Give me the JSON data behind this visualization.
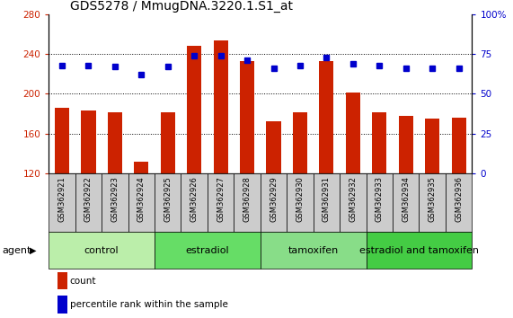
{
  "title": "GDS5278 / MmugDNA.3220.1.S1_at",
  "samples": [
    "GSM362921",
    "GSM362922",
    "GSM362923",
    "GSM362924",
    "GSM362925",
    "GSM362926",
    "GSM362927",
    "GSM362928",
    "GSM362929",
    "GSM362930",
    "GSM362931",
    "GSM362932",
    "GSM362933",
    "GSM362934",
    "GSM362935",
    "GSM362936"
  ],
  "bar_values": [
    186,
    183,
    181,
    132,
    181,
    248,
    254,
    233,
    172,
    181,
    233,
    201,
    181,
    178,
    175,
    176
  ],
  "dot_values": [
    68,
    68,
    67,
    62,
    67,
    74,
    74,
    71,
    66,
    68,
    73,
    69,
    68,
    66,
    66,
    66
  ],
  "bar_color": "#cc2200",
  "dot_color": "#0000cc",
  "ylim_left": [
    120,
    280
  ],
  "ylim_right": [
    0,
    100
  ],
  "yticks_left": [
    120,
    160,
    200,
    240,
    280
  ],
  "yticks_right": [
    0,
    25,
    50,
    75,
    100
  ],
  "yticklabels_right": [
    "0",
    "25",
    "50",
    "75",
    "100%"
  ],
  "groups": [
    {
      "label": "control",
      "start": 0,
      "end": 4,
      "color": "#bbeeaa"
    },
    {
      "label": "estradiol",
      "start": 4,
      "end": 8,
      "color": "#66dd66"
    },
    {
      "label": "tamoxifen",
      "start": 8,
      "end": 12,
      "color": "#88dd88"
    },
    {
      "label": "estradiol and tamoxifen",
      "start": 12,
      "end": 16,
      "color": "#44cc44"
    }
  ],
  "agent_label": "agent",
  "title_fontsize": 10,
  "tick_fontsize": 7.5,
  "label_fontsize": 8,
  "group_fontsize": 8
}
